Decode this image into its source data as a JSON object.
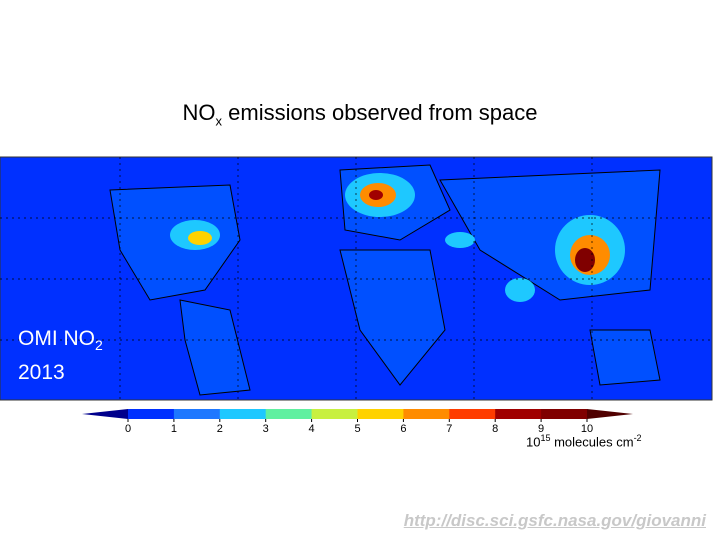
{
  "slide": {
    "title": {
      "main": "NO",
      "sub": "x",
      "rest": " emissions observed from space"
    },
    "overlay": {
      "line1": "OMI NO",
      "sub": "2",
      "line2": "2013"
    },
    "colorbar": {
      "ticks": [
        0,
        1,
        2,
        3,
        4,
        5,
        6,
        7,
        8,
        9,
        10
      ],
      "colors": [
        "#0030ff",
        "#1e78ff",
        "#1ec8ff",
        "#60f0a0",
        "#c8f040",
        "#ffd200",
        "#ff8c00",
        "#ff3c00",
        "#a00000",
        "#800000"
      ],
      "under_color": "#00008c",
      "over_color": "#500000",
      "unit": {
        "base": "10",
        "exp": "15",
        "text": " molecules cm",
        "unit_exp": "-2"
      }
    },
    "url": "http://disc.sci.gsfc.nasa.gov/giovanni"
  }
}
